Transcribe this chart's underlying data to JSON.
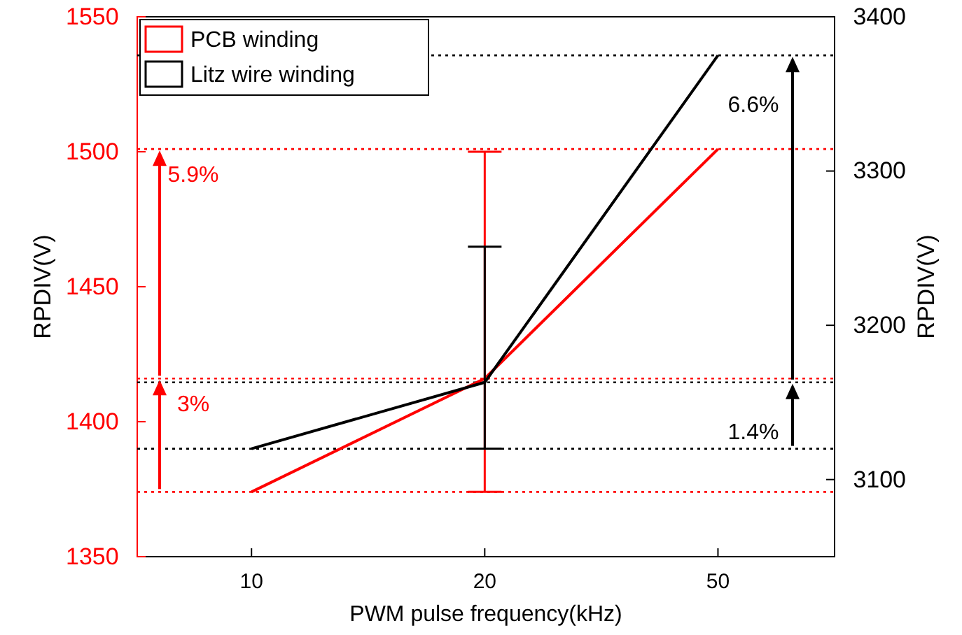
{
  "chart_data": {
    "type": "line",
    "xlabel": "PWM pulse frequency(kHz)",
    "ylabel": "RPDIV(V)",
    "y2label": "RPDIV(V)",
    "categories": [
      "10",
      "20",
      "50"
    ],
    "ylim": [
      1350,
      1550
    ],
    "yticks": [
      1350,
      1400,
      1450,
      1500,
      1550
    ],
    "y2lim": [
      3050,
      3400
    ],
    "y2ticks": [
      3100,
      3200,
      3300,
      3400
    ],
    "series": [
      {
        "name": "PCB winding",
        "color": "#ff0000",
        "values": [
          1374,
          1416,
          1501
        ],
        "errors": [
          null,
          [
            1374,
            1500
          ],
          null
        ]
      },
      {
        "name": "Litz wire winding",
        "color": "#000000",
        "axis": "y2",
        "values": [
          3120,
          3163,
          3375
        ],
        "errors": [
          null,
          [
            3120,
            3251
          ],
          null
        ]
      }
    ],
    "ref_lines": [
      {
        "axis": "y",
        "value": 1374,
        "color": "#ff0000",
        "line_style": "dotted"
      },
      {
        "axis": "y",
        "value": 1416,
        "color": "#ff0000",
        "line_style": "dotted"
      },
      {
        "axis": "y",
        "value": 1501,
        "color": "#ff0000",
        "line_style": "dotted"
      },
      {
        "axis": "y2",
        "value": 3120,
        "color": "#000000",
        "line_style": "dotted"
      },
      {
        "axis": "y2",
        "value": 3163,
        "color": "#000000",
        "line_style": "dotted"
      },
      {
        "axis": "y2",
        "value": 3375,
        "color": "#000000",
        "line_style": "dotted"
      }
    ],
    "annotations": [
      {
        "text": "3%",
        "y": 1416
      },
      {
        "text": "5.9%",
        "y": 1501
      },
      "1.4%",
      "6.6%"
    ],
    "legend": "top left",
    "grid": false,
    "marker": "none",
    "line_style": "solid"
  }
}
